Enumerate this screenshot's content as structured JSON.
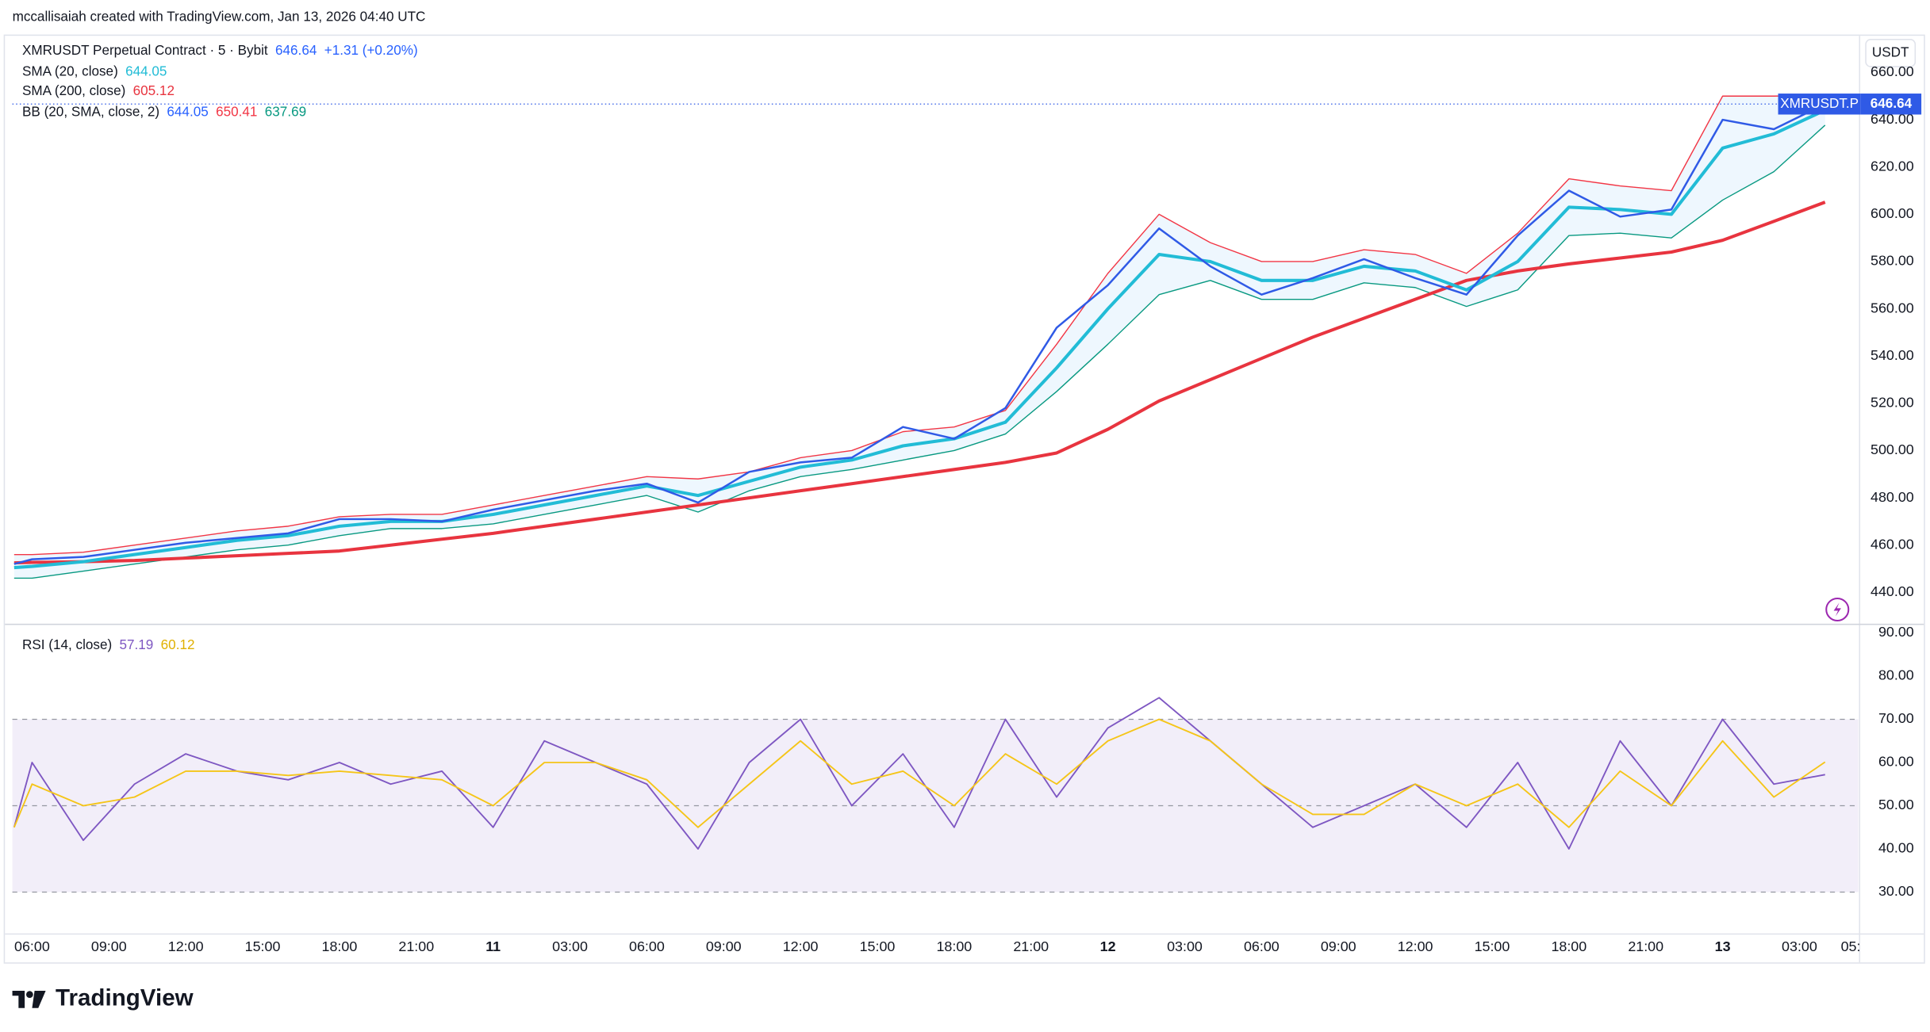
{
  "header": {
    "attribution": "mccallisaiah created with TradingView.com, Jan 13, 2026 04:40 UTC",
    "change": "+1.31 (+0.20%)",
    "currency": "USDT",
    "symbol_badge": "XMRUSDT.P",
    "brand": "TradingView"
  },
  "chart_data": [
    {
      "type": "line",
      "xlim": [
        -0.77,
        71.3
      ],
      "ylim": [
        427.0,
        675.0
      ],
      "yticks": [
        {
          "value": 440,
          "label": "440.00"
        },
        {
          "value": 460,
          "label": "460.00"
        },
        {
          "value": 480,
          "label": "480.00"
        },
        {
          "value": 500,
          "label": "500.00"
        },
        {
          "value": 520,
          "label": "520.00"
        },
        {
          "value": 540,
          "label": "540.00"
        },
        {
          "value": 560,
          "label": "560.00"
        },
        {
          "value": 580,
          "label": "580.00"
        },
        {
          "value": 600,
          "label": "600.00"
        },
        {
          "value": 620,
          "label": "620.00"
        },
        {
          "value": 640,
          "label": "640.00"
        },
        {
          "value": 660,
          "label": "660.00"
        }
      ],
      "x": [
        -0.7,
        0,
        2,
        4,
        6,
        8,
        10,
        12,
        14,
        16,
        18,
        20,
        22,
        24,
        26,
        28,
        30,
        32,
        34,
        36,
        38,
        40,
        42,
        44,
        46,
        48,
        50,
        52,
        54,
        56,
        58,
        60,
        62,
        64,
        66,
        68,
        70
      ],
      "series": [
        {
          "name": "XMRUSDT Perpetual Contract · 5 · Bybit",
          "color": "#2f5ae6",
          "width": 1.6,
          "values": [
            452,
            454,
            455,
            458,
            461,
            463,
            465,
            471,
            471,
            470,
            475,
            479,
            483,
            486,
            478,
            491,
            495,
            497,
            510,
            505,
            518,
            552,
            570,
            594,
            578,
            566,
            573,
            581,
            573,
            566,
            591,
            610,
            599,
            602,
            640,
            636,
            646.64
          ]
        },
        {
          "name": "SMA (20, close)",
          "color": "#22bcd6",
          "width": 2.6,
          "values": [
            450.5,
            451,
            453,
            456,
            459,
            462,
            464,
            468,
            470,
            470,
            473,
            477,
            481,
            485,
            481,
            487,
            493,
            496,
            502,
            505,
            512,
            535,
            560,
            583,
            580,
            572,
            572,
            578,
            576,
            568,
            580,
            603,
            602,
            600,
            628,
            634,
            644.05
          ]
        },
        {
          "name": "SMA (200, close)",
          "color": "#e8343f",
          "width": 2.6,
          "values": [
            452.5,
            452.7,
            453,
            453.5,
            454.5,
            455.5,
            456.5,
            457.5,
            460,
            462.5,
            465,
            468,
            471,
            474,
            477,
            480,
            483,
            486,
            489,
            492,
            495,
            499,
            509,
            521,
            530,
            539,
            548,
            556,
            564,
            572,
            576,
            579,
            581.5,
            584,
            589,
            597,
            605.12
          ]
        }
      ],
      "bands": {
        "name": "BB (20, SMA, close, 2)",
        "basis_color": "#2962ff",
        "upper_color": "#f23645",
        "lower_color": "#089981",
        "fill": "rgba(33,150,243,0.08)",
        "upper": [
          456,
          456,
          457,
          460,
          463,
          466,
          468,
          472,
          473,
          473,
          477,
          481,
          485,
          489,
          488,
          491,
          497,
          500,
          508,
          510,
          517,
          545,
          575,
          600,
          588,
          580,
          580,
          585,
          583,
          575,
          592,
          615,
          612,
          610,
          650,
          650,
          650.41
        ],
        "lower": [
          446,
          446,
          449,
          452,
          455,
          458,
          460,
          464,
          467,
          467,
          469,
          473,
          477,
          481,
          474,
          483,
          489,
          492,
          496,
          500,
          507,
          525,
          545,
          566,
          572,
          564,
          564,
          571,
          569,
          561,
          568,
          591,
          592,
          590,
          606,
          618,
          637.69
        ]
      }
    },
    {
      "type": "line",
      "title": "RSI (14, close)",
      "xlim": [
        -0.77,
        71.3
      ],
      "ylim": [
        20.3,
        91.7
      ],
      "yticks": [
        {
          "value": 30,
          "label": "30.00"
        },
        {
          "value": 40,
          "label": "40.00"
        },
        {
          "value": 50,
          "label": "50.00"
        },
        {
          "value": 60,
          "label": "60.00"
        },
        {
          "value": 70,
          "label": "70.00"
        },
        {
          "value": 80,
          "label": "80.00"
        },
        {
          "value": 90,
          "label": "90.00"
        }
      ],
      "band": [
        30,
        70
      ],
      "hlines": [
        30,
        50,
        70
      ],
      "xticks": [
        {
          "value": 0,
          "label": "06:00"
        },
        {
          "value": 3,
          "label": "09:00"
        },
        {
          "value": 6,
          "label": "12:00"
        },
        {
          "value": 9,
          "label": "15:00"
        },
        {
          "value": 12,
          "label": "18:00"
        },
        {
          "value": 15,
          "label": "21:00"
        },
        {
          "value": 18,
          "label": "11"
        },
        {
          "value": 21,
          "label": "03:00"
        },
        {
          "value": 24,
          "label": "06:00"
        },
        {
          "value": 27,
          "label": "09:00"
        },
        {
          "value": 30,
          "label": "12:00"
        },
        {
          "value": 33,
          "label": "15:00"
        },
        {
          "value": 36,
          "label": "18:00"
        },
        {
          "value": 39,
          "label": "21:00"
        },
        {
          "value": 42,
          "label": "12"
        },
        {
          "value": 45,
          "label": "03:00"
        },
        {
          "value": 48,
          "label": "06:00"
        },
        {
          "value": 51,
          "label": "09:00"
        },
        {
          "value": 54,
          "label": "12:00"
        },
        {
          "value": 57,
          "label": "15:00"
        },
        {
          "value": 60,
          "label": "18:00"
        },
        {
          "value": 63,
          "label": "21:00"
        },
        {
          "value": 66,
          "label": "13"
        },
        {
          "value": 69,
          "label": "03:00"
        },
        {
          "value": 71,
          "label": "05:"
        }
      ],
      "x": [
        -0.7,
        0,
        2,
        4,
        6,
        8,
        10,
        12,
        14,
        16,
        18,
        20,
        22,
        24,
        26,
        28,
        30,
        32,
        34,
        36,
        38,
        40,
        42,
        44,
        46,
        48,
        50,
        52,
        54,
        56,
        58,
        60,
        62,
        64,
        66,
        68,
        70
      ],
      "series": [
        {
          "color": "#7e57c2",
          "width": 1.2,
          "values": [
            45,
            60,
            42,
            55,
            62,
            58,
            56,
            60,
            55,
            58,
            45,
            65,
            60,
            55,
            40,
            60,
            70,
            50,
            62,
            45,
            70,
            52,
            68,
            75,
            65,
            55,
            45,
            50,
            55,
            45,
            60,
            40,
            65,
            50,
            70,
            55,
            57.19
          ]
        },
        {
          "color": "#f5c518",
          "width": 1.2,
          "values": [
            45,
            55,
            50,
            52,
            58,
            58,
            57,
            58,
            57,
            56,
            50,
            60,
            60,
            56,
            45,
            55,
            65,
            55,
            58,
            50,
            62,
            55,
            65,
            70,
            65,
            55,
            48,
            48,
            55,
            50,
            55,
            45,
            58,
            50,
            65,
            52,
            60.12
          ]
        }
      ]
    }
  ]
}
